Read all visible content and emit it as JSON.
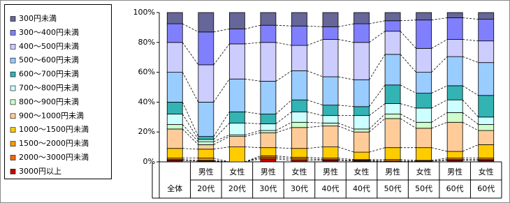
{
  "chart_data": {
    "type": "stacked_bar_100",
    "categories": [
      [
        "全体"
      ],
      [
        "男性",
        "20代"
      ],
      [
        "女性",
        "20代"
      ],
      [
        "男性",
        "30代"
      ],
      [
        "女性",
        "30代"
      ],
      [
        "男性",
        "40代"
      ],
      [
        "女性",
        "40代"
      ],
      [
        "男性",
        "50代"
      ],
      [
        "女性",
        "50代"
      ],
      [
        "男性",
        "60代"
      ],
      [
        "女性",
        "60代"
      ]
    ],
    "series": [
      {
        "name": "3000円以上",
        "color": "#cc0000",
        "values": [
          1,
          0.5,
          0,
          2,
          1,
          1,
          0.5,
          0.5,
          0.5,
          1,
          1
        ]
      },
      {
        "name": "2000～3000円未満",
        "color": "#ff6600",
        "values": [
          0.5,
          0.5,
          0,
          1,
          1,
          0.5,
          0.5,
          0,
          0,
          0.5,
          0.5
        ]
      },
      {
        "name": "1500～2000円未満",
        "color": "#ff9900",
        "values": [
          1,
          1.5,
          0,
          1,
          1,
          1,
          0.5,
          1,
          0.5,
          1,
          1
        ]
      },
      {
        "name": "1000～1500円未満",
        "color": "#ffcc00",
        "values": [
          6.5,
          6,
          10,
          5.5,
          6,
          7.5,
          5,
          8,
          8.5,
          4.5,
          9
        ]
      },
      {
        "name": "900～1000円未満",
        "color": "#ffcc99",
        "values": [
          13,
          3,
          7,
          10,
          14,
          14,
          13.5,
          19.5,
          13,
          19.5,
          9.5
        ]
      },
      {
        "name": "800～900円未満",
        "color": "#ccffcc",
        "values": [
          3,
          2,
          1,
          1.5,
          3.5,
          2,
          2,
          3,
          4,
          6.5,
          4
        ]
      },
      {
        "name": "700～800円未満",
        "color": "#ccffff",
        "values": [
          7,
          1.5,
          8,
          4.5,
          7,
          5,
          9,
          7,
          9.5,
          8.5,
          5
        ]
      },
      {
        "name": "600～700円未満",
        "color": "#33b3b3",
        "values": [
          8,
          2,
          7.5,
          6.5,
          8,
          7,
          6,
          12.5,
          10,
          9.5,
          14.5
        ]
      },
      {
        "name": "500～600円未満",
        "color": "#99ccff",
        "values": [
          20,
          23,
          22,
          22,
          19.5,
          19,
          18,
          20.5,
          14,
          19.5,
          22
        ]
      },
      {
        "name": "400～500円未満",
        "color": "#ccccff",
        "values": [
          20,
          25,
          23.5,
          26,
          17,
          25,
          25,
          15.5,
          16,
          11.5,
          14.5
        ]
      },
      {
        "name": "300～400円未満",
        "color": "#8080ff",
        "values": [
          12.5,
          22,
          10,
          11.5,
          13,
          8.5,
          12.5,
          7,
          19,
          14.5,
          14.5
        ]
      },
      {
        "name": "300円未満",
        "color": "#666699",
        "values": [
          7.5,
          13,
          11,
          8.5,
          9,
          9.5,
          7.5,
          5.5,
          5,
          3.5,
          4.5
        ]
      }
    ],
    "ylim": [
      0,
      100
    ],
    "yticks": [
      {
        "value": 0,
        "label": "0%"
      },
      {
        "value": 20,
        "label": "20%"
      },
      {
        "value": 40,
        "label": "40%"
      },
      {
        "value": 60,
        "label": "60%"
      },
      {
        "value": 80,
        "label": "80%"
      },
      {
        "value": 100,
        "label": "100%"
      }
    ],
    "connector_lines": true
  }
}
